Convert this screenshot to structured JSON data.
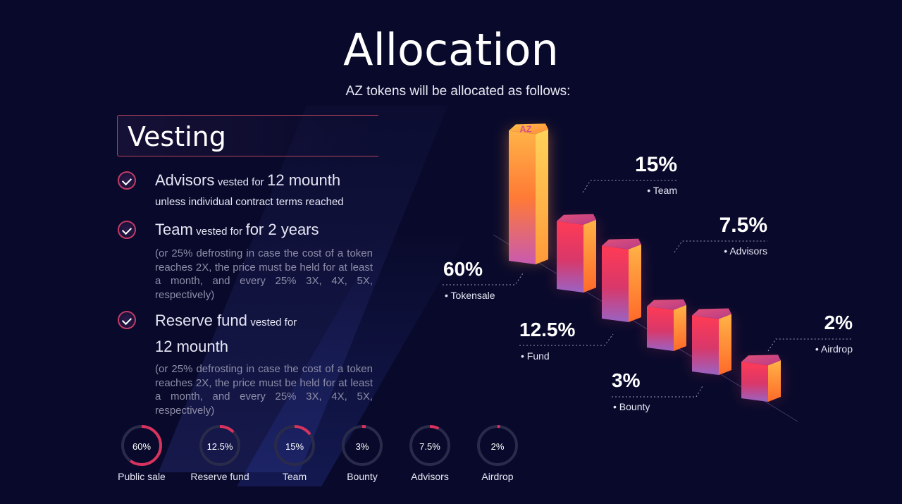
{
  "header": {
    "title": "Allocation",
    "subtitle": "AZ tokens will be allocated as follows:"
  },
  "vesting": {
    "title": "Vesting",
    "items": [
      {
        "name": "Advisors",
        "mid": "vested for",
        "term": "12 mounth",
        "sub": "unless individual contract terms reached"
      },
      {
        "name": "Team",
        "mid": "vested for",
        "term": "for 2 years",
        "note": "(or 25% defrosting in case the cost of a token reaches 2X, the price must be held for at least a month, and every 25% 3X, 4X, 5X, respectively)"
      },
      {
        "name": "Reserve fund",
        "mid": "vested for",
        "term": "12 mounth",
        "note": "(or 25% defrosting in case the cost of a token reaches 2X, the price must be held for at least a month, and every 25% 3X, 4X, 5X, respectively)"
      }
    ]
  },
  "chart_data": {
    "type": "bar",
    "categories": [
      "Tokensale",
      "Fund",
      "Team",
      "Bounty",
      "Advisors",
      "Airdrop"
    ],
    "values": [
      60,
      12.5,
      15,
      3,
      7.5,
      2
    ],
    "value_labels": [
      "60%",
      "12.5%",
      "15%",
      "3%",
      "7.5%",
      "2%"
    ],
    "category_labels": [
      "• Tokensale",
      "• Fund",
      "• Team",
      "• Bounty",
      "• Advisors",
      "• Airdrop"
    ]
  },
  "gauges": [
    {
      "label": "Public sale",
      "value": 60,
      "text": "60%"
    },
    {
      "label": "Reserve fund",
      "value": 12.5,
      "text": "12.5%"
    },
    {
      "label": "Team",
      "value": 15,
      "text": "15%"
    },
    {
      "label": "Bounty",
      "value": 3,
      "text": "3%"
    },
    {
      "label": "Advisors",
      "value": 7.5,
      "text": "7.5%"
    },
    {
      "label": "Airdrop",
      "value": 2,
      "text": "2%"
    }
  ],
  "colors": {
    "background": "#090a2b",
    "accent": "#d8325e",
    "track": "#2a2a4a"
  },
  "logo": "AZ"
}
